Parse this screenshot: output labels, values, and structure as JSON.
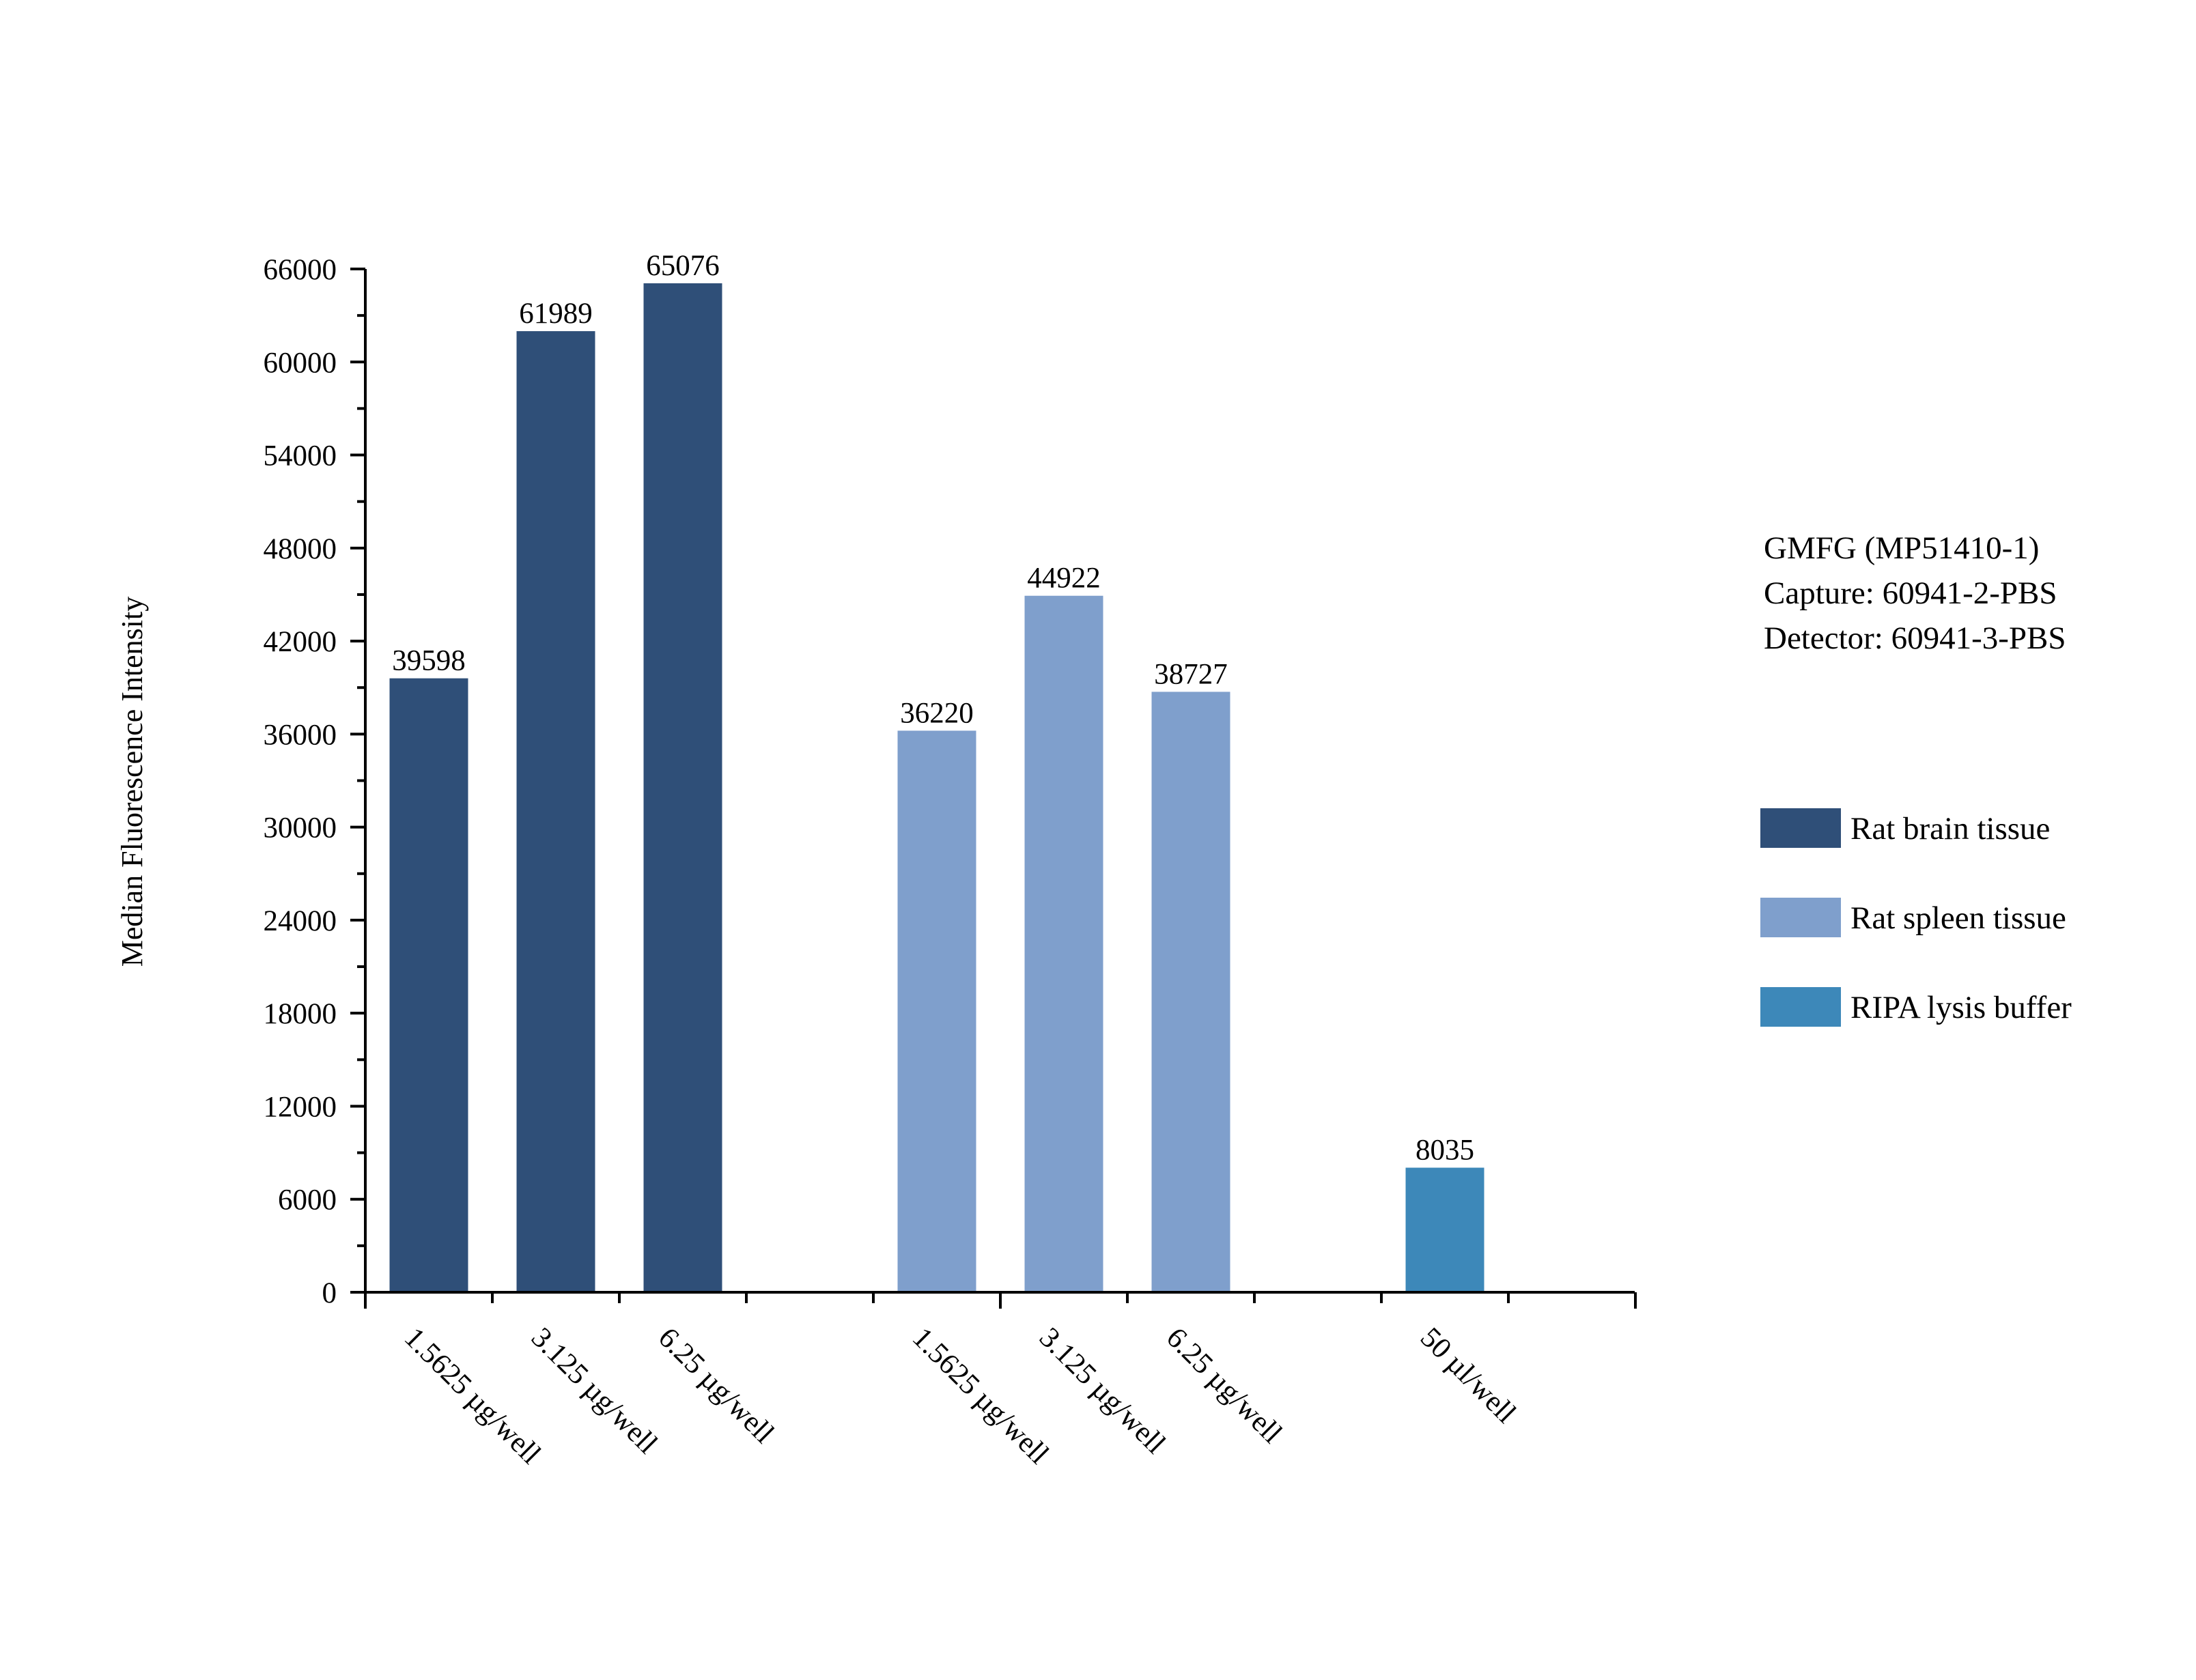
{
  "chart_data": {
    "type": "bar",
    "ylabel": "Median Fluorescence Intensity",
    "ylim": [
      0,
      66000
    ],
    "y_ticks": [
      0,
      6000,
      12000,
      18000,
      24000,
      30000,
      36000,
      42000,
      48000,
      54000,
      60000,
      66000
    ],
    "grid": false,
    "legend_position": "right",
    "info_lines": [
      "GMFG (MP51410-1)",
      "Capture: 60941-2-PBS",
      "Detector: 60941-3-PBS"
    ],
    "series": [
      {
        "name": "Rat brain tissue",
        "color": "#2f4f78",
        "categories": [
          "1.5625 µg/well",
          "3.125 µg/well",
          "6.25 µg/well"
        ],
        "values": [
          39598,
          61989,
          65076
        ]
      },
      {
        "name": "Rat spleen tissue",
        "color": "#7f9fcc",
        "categories": [
          "1.5625 µg/well",
          "3.125 µg/well",
          "6.25 µg/well"
        ],
        "values": [
          36220,
          44922,
          38727
        ]
      },
      {
        "name": "RIPA lysis buffer",
        "color": "#3d88b9",
        "categories": [
          "50 µl/well"
        ],
        "values": [
          8035
        ]
      }
    ]
  }
}
